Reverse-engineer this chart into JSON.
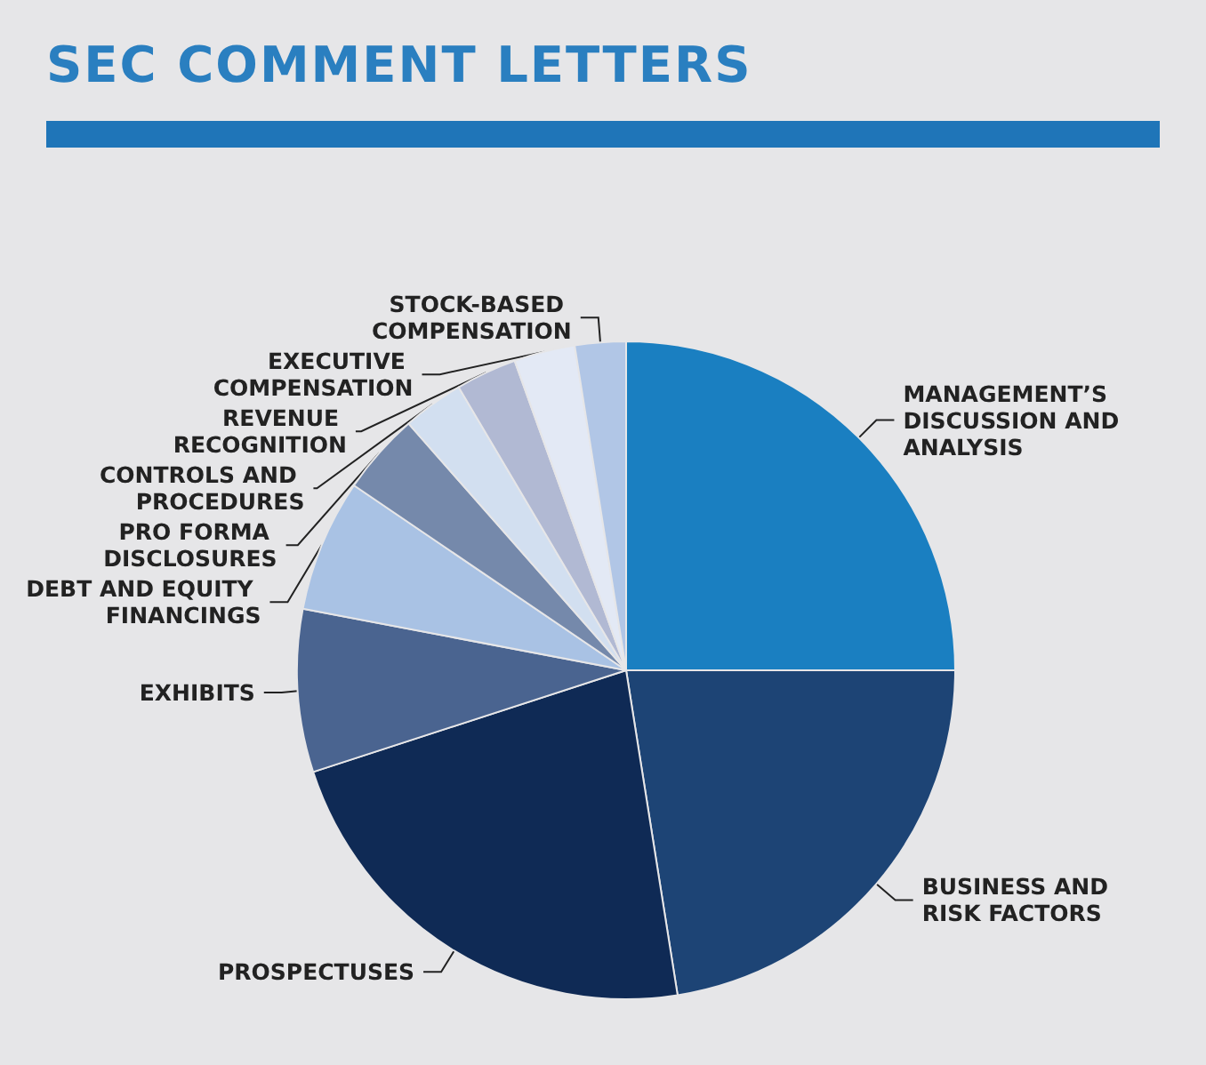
{
  "chart_data": {
    "type": "pie",
    "title": "SEC COMMENT LETTERS",
    "categories": [
      "MANAGEMENT’S DISCUSSION AND ANALYSIS",
      "BUSINESS AND RISK FACTORS",
      "PROSPECTUSES",
      "EXHIBITS",
      "DEBT AND EQUITY FINANCINGS",
      "PRO FORMA DISCLOSURES",
      "CONTROLS AND PROCEDURES",
      "REVENUE RECOGNITION",
      "EXECUTIVE COMPENSATION",
      "STOCK-BASED COMPENSATION"
    ],
    "values": [
      25,
      22.5,
      22.5,
      8,
      6.5,
      4,
      3,
      3,
      3,
      2.5
    ],
    "colors": [
      "#1a7fc1",
      "#1d4475",
      "#0f2a55",
      "#4a6490",
      "#a9c2e4",
      "#7589ab",
      "#d2dff0",
      "#b1b9d3",
      "#e3e9f5",
      "#b1c6e6"
    ],
    "legend": false
  }
}
